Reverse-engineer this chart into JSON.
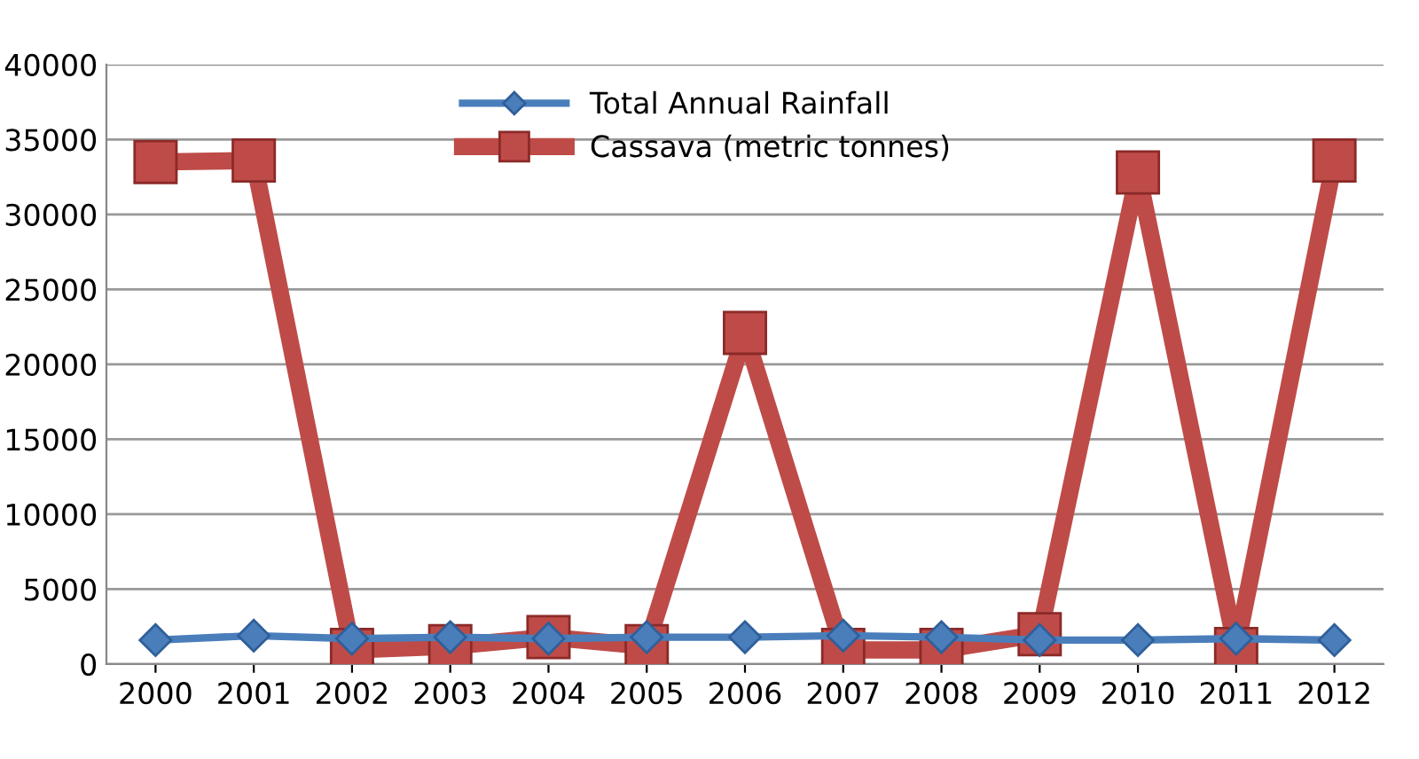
{
  "chart_data": {
    "type": "line",
    "categories": [
      "2000",
      "2001",
      "2002",
      "2003",
      "2004",
      "2005",
      "2006",
      "2007",
      "2008",
      "2009",
      "2010",
      "2011",
      "2012"
    ],
    "series": [
      {
        "name": "Total Annual Rainfall",
        "color": "#4a7ebb",
        "marker": "diamond",
        "values": [
          1600,
          1900,
          1700,
          1800,
          1700,
          1800,
          1800,
          1900,
          1800,
          1600,
          1600,
          1700,
          1600
        ]
      },
      {
        "name": "Cassava (metric tonnes)",
        "color": "#be4b48",
        "marker": "square",
        "values": [
          33500,
          33600,
          950,
          1200,
          1800,
          1200,
          22100,
          950,
          950,
          2000,
          32800,
          1000,
          33600
        ]
      }
    ],
    "ylim": [
      0,
      40000
    ],
    "yticks": [
      0,
      5000,
      10000,
      15000,
      20000,
      25000,
      30000,
      35000,
      40000
    ],
    "grid": "y",
    "legend": "top",
    "line_style": "solid"
  }
}
